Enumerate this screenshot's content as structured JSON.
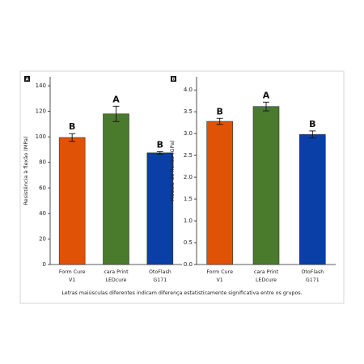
{
  "chart_data": [
    {
      "type": "bar",
      "panel": "A",
      "ylabel": "Resistência à flexão (MPa)",
      "categories": [
        [
          "Form Cure",
          "V1"
        ],
        [
          "cara Print",
          "LEDcure"
        ],
        [
          "OtoFlash",
          "G171"
        ]
      ],
      "values": [
        99.5,
        118,
        87.5
      ],
      "errors": [
        3,
        6,
        1
      ],
      "letters": [
        "B",
        "A",
        "B"
      ],
      "colors": [
        "#e05206",
        "#4a7a2c",
        "#0a3fa8"
      ],
      "ylim": [
        0,
        147
      ],
      "yticks": [
        0,
        20,
        40,
        60,
        80,
        100,
        120,
        140
      ]
    },
    {
      "type": "bar",
      "panel": "B",
      "ylabel": "Módulo de flexão (GPa)",
      "categories": [
        [
          "Form Cure",
          "V1"
        ],
        [
          "cara Print",
          "LEDcure"
        ],
        [
          "OtoFlash",
          "G171"
        ]
      ],
      "values": [
        3.28,
        3.62,
        2.98
      ],
      "errors": [
        0.07,
        0.1,
        0.08
      ],
      "letters": [
        "B",
        "A",
        "B"
      ],
      "colors": [
        "#e05206",
        "#4a7a2c",
        "#0a3fa8"
      ],
      "ylim": [
        0,
        4.3
      ],
      "yticks": [
        {
          "value": 0,
          "label": "0.0"
        },
        0.5,
        {
          "value": 1,
          "label": "1.0"
        },
        1.5,
        {
          "value": 2,
          "label": "2.0"
        },
        2.5,
        {
          "value": 3,
          "label": "3.0"
        },
        3.5,
        {
          "value": 4,
          "label": "4.0"
        }
      ]
    }
  ],
  "caption": "Letras maiúsculas diferentes indicam diferença estatisticamente significativa entre os grupos."
}
